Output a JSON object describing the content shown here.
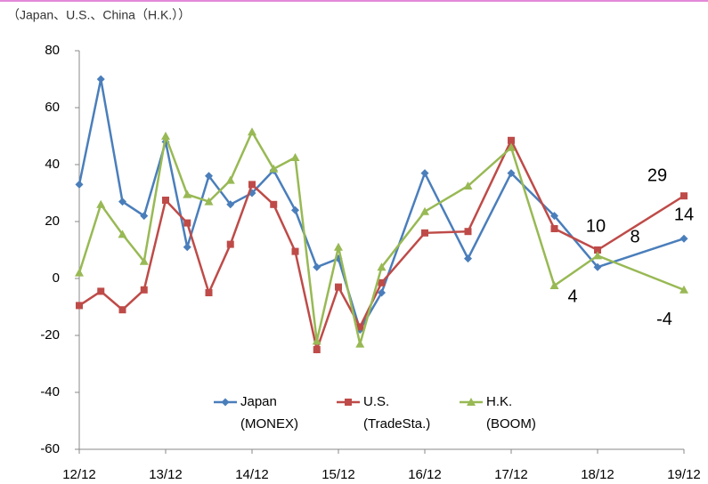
{
  "chart_data": {
    "type": "line",
    "subtitle": "（Japan、U.S.、China（H.K.））",
    "x": [
      0,
      1,
      2,
      3,
      4,
      5,
      6,
      7,
      8,
      9,
      10,
      11,
      12,
      13,
      14,
      16,
      18,
      20,
      22,
      24,
      28
    ],
    "xlim": [
      0,
      28
    ],
    "xticks": [
      {
        "value": 0,
        "label": "12/12"
      },
      {
        "value": 4,
        "label": "13/12"
      },
      {
        "value": 8,
        "label": "14/12"
      },
      {
        "value": 12,
        "label": "15/12"
      },
      {
        "value": 16,
        "label": "16/12"
      },
      {
        "value": 20,
        "label": "17/12"
      },
      {
        "value": 24,
        "label": "18/12"
      },
      {
        "value": 28,
        "label": "19/12"
      }
    ],
    "ylim": [
      -60,
      80
    ],
    "yticks": [
      -60,
      -40,
      -20,
      0,
      20,
      40,
      60,
      80
    ],
    "label_at": [
      24,
      28
    ],
    "series": [
      {
        "name": [
          "Japan",
          "(MONEX)"
        ],
        "color": "#4a7ebb",
        "marker": "diamond",
        "values": [
          33,
          70,
          27,
          22,
          48,
          11,
          36,
          26,
          30,
          38,
          24,
          4,
          7,
          -18,
          -5,
          37,
          7,
          37,
          22,
          4,
          14
        ]
      },
      {
        "name": [
          "U.S.",
          "(TradeSta.)"
        ],
        "color": "#be4b48",
        "marker": "square",
        "values": [
          -9.5,
          -4.5,
          -11,
          -4,
          27.5,
          19.5,
          -5,
          12,
          33,
          26,
          9.5,
          -25,
          -3,
          -17,
          -1.5,
          16,
          16.5,
          48.5,
          17.5,
          10,
          29
        ]
      },
      {
        "name": [
          "H.K.",
          "(BOOM)"
        ],
        "color": "#98b954",
        "marker": "triangle",
        "values": [
          2,
          26,
          15.5,
          6,
          50,
          29.5,
          27,
          34.5,
          51.5,
          38.5,
          42.5,
          -22,
          11,
          -23,
          4,
          23.5,
          32.5,
          46,
          -2.5,
          8,
          -4
        ]
      }
    ]
  }
}
